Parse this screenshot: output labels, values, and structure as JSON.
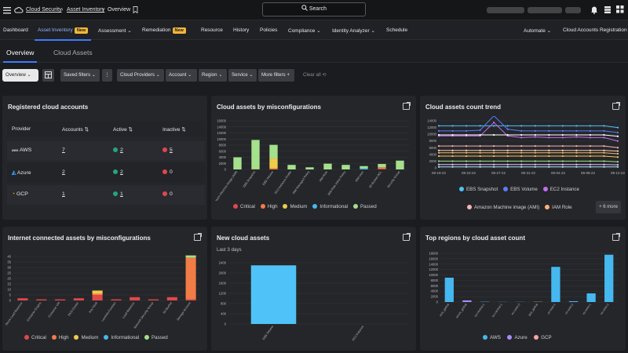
{
  "topbar": {
    "breadcrumb": [
      "Cloud Security",
      "Asset Inventory",
      "Overview"
    ],
    "search_label": "Search"
  },
  "nav": {
    "items": [
      "Dashboard",
      "Asset Inventory",
      "Assessment",
      "Remediation",
      "Resource",
      "History",
      "Policies",
      "Compliance",
      "Identity Analyzer",
      "Schedule",
      "Automate",
      "Cloud Accounts Registration"
    ],
    "new_badge": "New"
  },
  "subtabs": [
    "Overview",
    "Cloud Assets"
  ],
  "filters": {
    "view": "Overview",
    "saved": "Saved filters",
    "items": [
      "Cloud Providers",
      "Account",
      "Region",
      "Service",
      "More filters"
    ],
    "clear": "Clear all"
  },
  "accounts": {
    "title": "Registered cloud accounts",
    "headers": [
      "Provider",
      "Accounts",
      "Active",
      "Inactive"
    ],
    "rows": [
      {
        "provider": "AWS",
        "accounts": "7",
        "active": "2",
        "inactive": "5"
      },
      {
        "provider": "Azure",
        "accounts": "2",
        "active": "2",
        "inactive": "0"
      },
      {
        "provider": "GCP",
        "accounts": "1",
        "active": "1",
        "inactive": "0"
      }
    ]
  },
  "misconfig": {
    "title": "Cloud assets by misconfigurations",
    "yticks": [
      "16000",
      "14000",
      "12000",
      "10000",
      "8000",
      "6000",
      "4000",
      "2000",
      "0"
    ],
    "categories": [
      "Amazon Machine Image (AMI)",
      "EBS Snapshot",
      "EBS Volume",
      "EC2 Instance Profile",
      "IAM Managed Policy",
      "IAM Role",
      "IAM Role Inline Policy",
      "IAM User",
      "S3 Bucket ACL",
      "Security Group"
    ],
    "legend": [
      "Critical",
      "High",
      "Medium",
      "Informational",
      "Passed"
    ]
  },
  "trend": {
    "title": "Cloud assets count trend",
    "yticks": [
      "14000",
      "12000",
      "10000",
      "8000",
      "6000",
      "4000",
      "2000",
      "0"
    ],
    "xticks": [
      "08-19-22",
      "08-23-22",
      "08-27-22",
      "08-31-22",
      "09-04-22",
      "09-08-22",
      "09-12-22"
    ],
    "legend": [
      "EBS Snapshot",
      "EBS Volume",
      "EC2 Instance",
      "Amazon Machine image (AMI)",
      "IAM Role"
    ],
    "more": "+ 6 more"
  },
  "internet": {
    "title": "Internet connected assets by misconfigurations",
    "yticks": [
      "40",
      "35",
      "30",
      "25",
      "20",
      "15",
      "10",
      "5",
      "0"
    ],
    "categories": [
      "Azure Load Balancer",
      "Container Engine",
      "Container VM",
      "EKS Cluster",
      "Key Vault",
      "Lambda Function",
      "Load Balancer",
      "Network Security Group",
      "S3 Bucket",
      "Storage Account"
    ],
    "legend": [
      "Critical",
      "High",
      "Medium",
      "Informational",
      "Passed"
    ]
  },
  "newassets": {
    "title": "New cloud assets",
    "subtitle": "Last 3 days",
    "yticks": [
      "2400",
      "2000",
      "1600",
      "1200",
      "800",
      "400",
      "0"
    ],
    "categories": [
      "EBS Volume",
      "EC2 Instance"
    ]
  },
  "regions": {
    "title": "Top regions by cloud asset count",
    "yticks": [
      "18000",
      "16000",
      "14000",
      "12000",
      "10000",
      "8000",
      "6000",
      "4000",
      "2000",
      "0"
    ],
    "categories": [
      "aws_global",
      "azure_global",
      "ca-central-1",
      "eu-central-1",
      "eu-west-3",
      "gcp_global",
      "us-east-1",
      "us-east-2",
      "us-west-1",
      "us-west-2"
    ],
    "legend": [
      "AWS",
      "Azure",
      "GCP"
    ]
  },
  "chart_data": [
    {
      "type": "bar",
      "title": "Cloud assets by misconfigurations",
      "categories": [
        "Amazon Machine Image (AMI)",
        "EBS Snapshot",
        "EBS Volume",
        "EC2 Instance Profile",
        "IAM Managed Policy",
        "IAM Role",
        "IAM Role Inline Policy",
        "IAM User",
        "S3 Bucket ACL",
        "Security Group"
      ],
      "stacked": true,
      "ylim": [
        0,
        16000
      ],
      "series": [
        {
          "name": "Critical",
          "color": "#e0484a",
          "values": [
            0,
            0,
            0,
            0,
            0,
            0,
            0,
            0,
            200,
            0
          ]
        },
        {
          "name": "High",
          "color": "#f27c45",
          "values": [
            0,
            0,
            400,
            0,
            0,
            0,
            0,
            0,
            500,
            0
          ]
        },
        {
          "name": "Medium",
          "color": "#f0cb4c",
          "values": [
            0,
            200,
            3200,
            0,
            0,
            0,
            0,
            0,
            0,
            0
          ]
        },
        {
          "name": "Informational",
          "color": "#45b8f0",
          "values": [
            0,
            0,
            0,
            0,
            0,
            0,
            0,
            400,
            0,
            0
          ]
        },
        {
          "name": "Passed",
          "color": "#a5e08d",
          "values": [
            4000,
            9500,
            4500,
            1500,
            700,
            1900,
            1500,
            700,
            1100,
            2900
          ]
        }
      ]
    },
    {
      "type": "line",
      "title": "Cloud assets count trend",
      "ylim": [
        0,
        14000
      ],
      "x": [
        "08-19-22",
        "08-21-22",
        "08-23-22",
        "08-25-22",
        "08-27-22",
        "08-29-22",
        "08-31-22",
        "09-02-22",
        "09-04-22",
        "09-06-22",
        "09-08-22",
        "09-10-22",
        "09-12-22",
        "09-14-22"
      ],
      "series": [
        {
          "name": "EBS Snapshot",
          "color": "#4fc3f7",
          "values": [
            12500,
            12500,
            12500,
            12500,
            12500,
            12500,
            12500,
            12500,
            12500,
            12500,
            12500,
            12500,
            12500,
            12000
          ]
        },
        {
          "name": "EBS Volume",
          "color": "#5c7cff",
          "values": [
            11000,
            11000,
            11000,
            11200,
            15500,
            11500,
            11000,
            11000,
            11000,
            11000,
            11000,
            11000,
            11000,
            10500
          ]
        },
        {
          "name": "EC2 Instance",
          "color": "#c56cf0",
          "values": [
            9500,
            9500,
            9500,
            9500,
            13500,
            9500,
            9000,
            9200,
            9000,
            9000,
            9200,
            9000,
            9000,
            8000
          ]
        },
        {
          "name": "Amazon Machine image (AMI)",
          "color": "#f5b5b5",
          "values": [
            6500,
            6500,
            6500,
            6500,
            6500,
            6500,
            6500,
            6500,
            6500,
            6500,
            6500,
            6500,
            6500,
            6000
          ]
        },
        {
          "name": "IAM Role",
          "color": "#ffb07a",
          "values": [
            4500,
            4500,
            4500,
            4500,
            4500,
            4500,
            4500,
            4500,
            4500,
            4500,
            4500,
            4500,
            4500,
            4200
          ]
        },
        {
          "color": "#f0cb4c",
          "values": [
            3500,
            3500,
            3500,
            3500,
            3500,
            3500,
            3500,
            3500,
            3500,
            3500,
            3500,
            3500,
            3500,
            3200
          ]
        },
        {
          "color": "#a5e08d",
          "values": [
            2000,
            2000,
            2000,
            2000,
            2000,
            2000,
            2000,
            2000,
            2000,
            2000,
            2000,
            2000,
            2000,
            1800
          ]
        },
        {
          "color": "#e0c4ff",
          "values": [
            1000,
            1000,
            1000,
            1000,
            1000,
            1000,
            1000,
            1000,
            1000,
            1000,
            1000,
            1000,
            1000,
            900
          ]
        },
        {
          "color": "#ffffff",
          "values": [
            9800,
            9800,
            9800,
            9800,
            9800,
            9800,
            9800,
            9800,
            9800,
            9800,
            9800,
            9800,
            9800,
            9400
          ]
        },
        {
          "color": "#ffd9a8",
          "values": [
            5200,
            5200,
            5200,
            5200,
            5200,
            5200,
            5200,
            5200,
            5200,
            5200,
            5200,
            5200,
            5200,
            5000
          ]
        },
        {
          "color": "#b0e0ff",
          "values": [
            300,
            300,
            300,
            300,
            300,
            300,
            300,
            300,
            300,
            300,
            300,
            300,
            300,
            300
          ]
        }
      ]
    },
    {
      "type": "bar",
      "title": "Internet connected assets by misconfigurations",
      "categories": [
        "Azure Load Balancer",
        "Container Engine",
        "Container VM",
        "EKS Cluster",
        "Key Vault",
        "Lambda Function",
        "Load Balancer",
        "Network Security Group",
        "S3 Bucket",
        "Storage Account"
      ],
      "stacked": true,
      "ylim": [
        0,
        40
      ],
      "series": [
        {
          "name": "Critical",
          "color": "#e0484a",
          "values": [
            2,
            1,
            1,
            2,
            5,
            1,
            3,
            1,
            3,
            1
          ]
        },
        {
          "name": "High",
          "color": "#f27c45",
          "values": [
            0,
            0,
            0,
            0,
            1,
            0,
            0,
            0,
            0,
            38
          ]
        },
        {
          "name": "Medium",
          "color": "#f0cb4c",
          "values": [
            0,
            0,
            0,
            0,
            3,
            0,
            0,
            0,
            0,
            0
          ]
        },
        {
          "name": "Informational",
          "color": "#45b8f0",
          "values": [
            0,
            0,
            0,
            0,
            0,
            0,
            0,
            0,
            0,
            0
          ]
        },
        {
          "name": "Passed",
          "color": "#a5e08d",
          "values": [
            0,
            0,
            0,
            0,
            0,
            0,
            0,
            0,
            0,
            2
          ]
        }
      ]
    },
    {
      "type": "bar",
      "title": "New cloud assets",
      "subtitle": "Last 3 days",
      "categories": [
        "EBS Volume",
        "EC2 Instance"
      ],
      "values": [
        2300,
        0
      ],
      "ylim": [
        0,
        2400
      ]
    },
    {
      "type": "bar",
      "title": "Top regions by cloud asset count",
      "categories": [
        "aws_global",
        "azure_global",
        "ca-central-1",
        "eu-central-1",
        "eu-west-3",
        "gcp_global",
        "us-east-1",
        "us-east-2",
        "us-west-1",
        "us-west-2"
      ],
      "ylim": [
        0,
        18000
      ],
      "bar_colors": [
        "#45b8f0",
        "#a98bff",
        "#45b8f0",
        "#45b8f0",
        "#45b8f0",
        "#c9a26a",
        "#45b8f0",
        "#45b8f0",
        "#45b8f0",
        "#45b8f0"
      ],
      "values": [
        9000,
        600,
        100,
        50,
        50,
        100,
        13000,
        300,
        3200,
        17500
      ]
    }
  ]
}
